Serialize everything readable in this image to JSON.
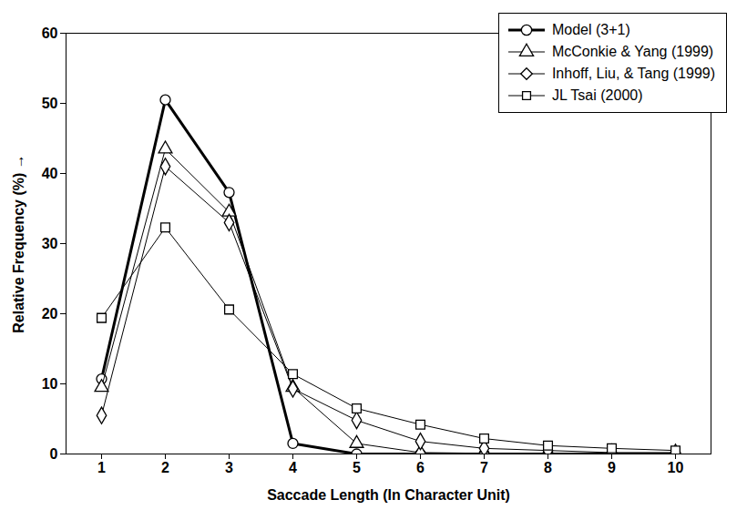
{
  "chart_data": {
    "type": "line",
    "x_label": "Saccade Length (In Character Unit)",
    "y_label": "Relative Frequency (%)",
    "categories": [
      "1",
      "2",
      "3",
      "4",
      "5",
      "6",
      "7",
      "8",
      "9",
      "10"
    ],
    "series": [
      {
        "name": "Model (3+1)",
        "color": "#000000",
        "marker": "circle",
        "line_style": "solid",
        "values": [
          10.7,
          50.5,
          37.3,
          1.5,
          0,
          0,
          0,
          0,
          0,
          0
        ]
      },
      {
        "name": "McConkie & Yang (1999)",
        "color": "#000000",
        "marker": "triangle",
        "line_style": "solid",
        "values": [
          9.5,
          43.5,
          34.5,
          9.5,
          1.5,
          0.2,
          0.1,
          0,
          0,
          0
        ]
      },
      {
        "name": "Inhoff, Liu, & Tang (1999)",
        "color": "#000000",
        "marker": "diamond",
        "line_style": "solid",
        "values": [
          5.5,
          41,
          33,
          9.3,
          4.8,
          1.8,
          0.8,
          0.5,
          0.2,
          0.2
        ]
      },
      {
        "name": "JL Tsai (2000)",
        "color": "#000000",
        "marker": "square",
        "line_style": "solid",
        "values": [
          19.4,
          32.3,
          20.6,
          11.4,
          6.5,
          4.2,
          2.2,
          1.2,
          0.8,
          0.5
        ]
      }
    ],
    "ylim": [
      0,
      60
    ],
    "yticks": [
      0,
      10,
      20,
      30,
      40,
      50,
      60
    ],
    "grid": false,
    "legend": "top-right"
  }
}
